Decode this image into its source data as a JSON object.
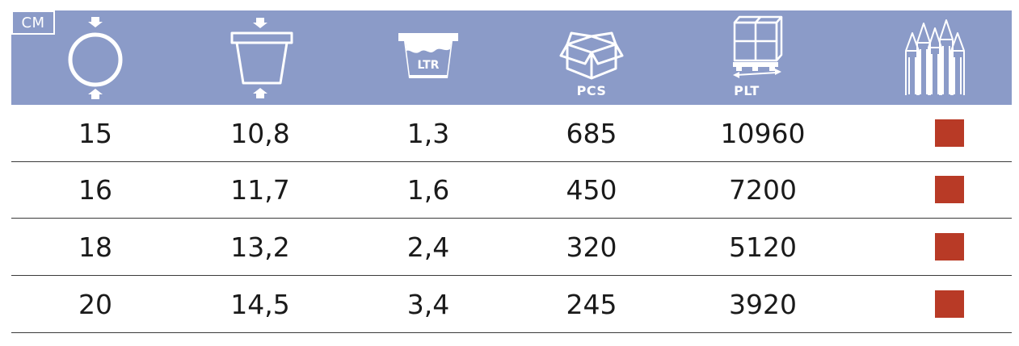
{
  "header": {
    "unit_tag": "CM",
    "columns": [
      {
        "icon": "diameter-icon",
        "label": ""
      },
      {
        "icon": "pot-height-icon",
        "label": ""
      },
      {
        "icon": "volume-icon",
        "label": "",
        "icon_text": "LTR"
      },
      {
        "icon": "box-icon",
        "label": "PCS"
      },
      {
        "icon": "pallet-icon",
        "label": "PLT"
      },
      {
        "icon": "colors-icon",
        "label": ""
      }
    ]
  },
  "rows": [
    {
      "diameter": "15",
      "height": "10,8",
      "volume": "1,3",
      "pcs": "685",
      "plt": "10960",
      "color": "#b83a26"
    },
    {
      "diameter": "16",
      "height": "11,7",
      "volume": "1,6",
      "pcs": "450",
      "plt": "7200",
      "color": "#b83a26"
    },
    {
      "diameter": "18",
      "height": "13,2",
      "volume": "2,4",
      "pcs": "320",
      "plt": "5120",
      "color": "#b83a26"
    },
    {
      "diameter": "20",
      "height": "14,5",
      "volume": "3,4",
      "pcs": "245",
      "plt": "3920",
      "color": "#b83a26"
    }
  ],
  "colors": {
    "header_bg": "#8b9bc8",
    "swatch": "#b83a26",
    "text": "#1a1a1a"
  }
}
